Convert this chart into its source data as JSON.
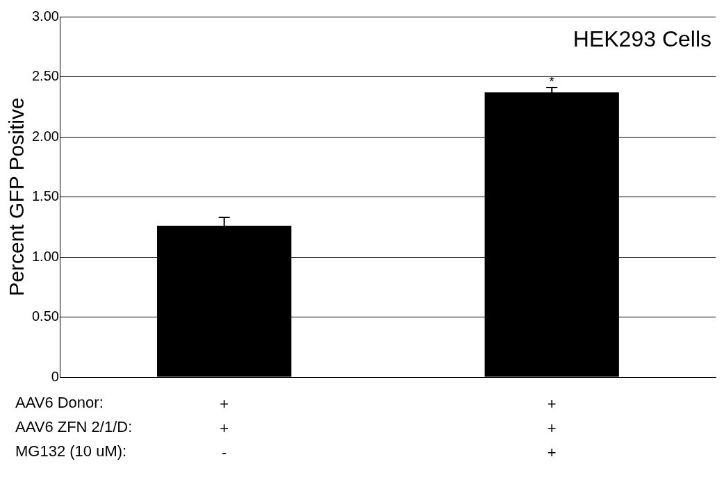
{
  "chart_data": {
    "type": "bar",
    "title": "HEK293 Cells",
    "ylabel": "Percent GFP Positive",
    "categories": [
      "+\n+\n-",
      "+\n+\n+"
    ],
    "values": [
      1.26,
      2.37
    ],
    "errors": [
      0.07,
      0.04
    ],
    "color": "#000000",
    "ylim": [
      0,
      3
    ],
    "yticks": [
      0,
      {
        "value": 0.5,
        "label": "0.50"
      },
      {
        "value": 1,
        "label": "1.00"
      },
      {
        "value": 1.5,
        "label": "1.50"
      },
      {
        "value": 2,
        "label": "2.00"
      },
      {
        "value": 2.5,
        "label": "2.50"
      },
      {
        "value": 3,
        "label": "3.00"
      }
    ],
    "grid": "y",
    "annotations": [
      "AAV6 Donor:",
      "AAV6 ZFN 2/1/D:",
      "MG132 (10 uM):",
      {
        "text": "*",
        "x": "+\n+\n+",
        "y": 2.41
      }
    ]
  }
}
